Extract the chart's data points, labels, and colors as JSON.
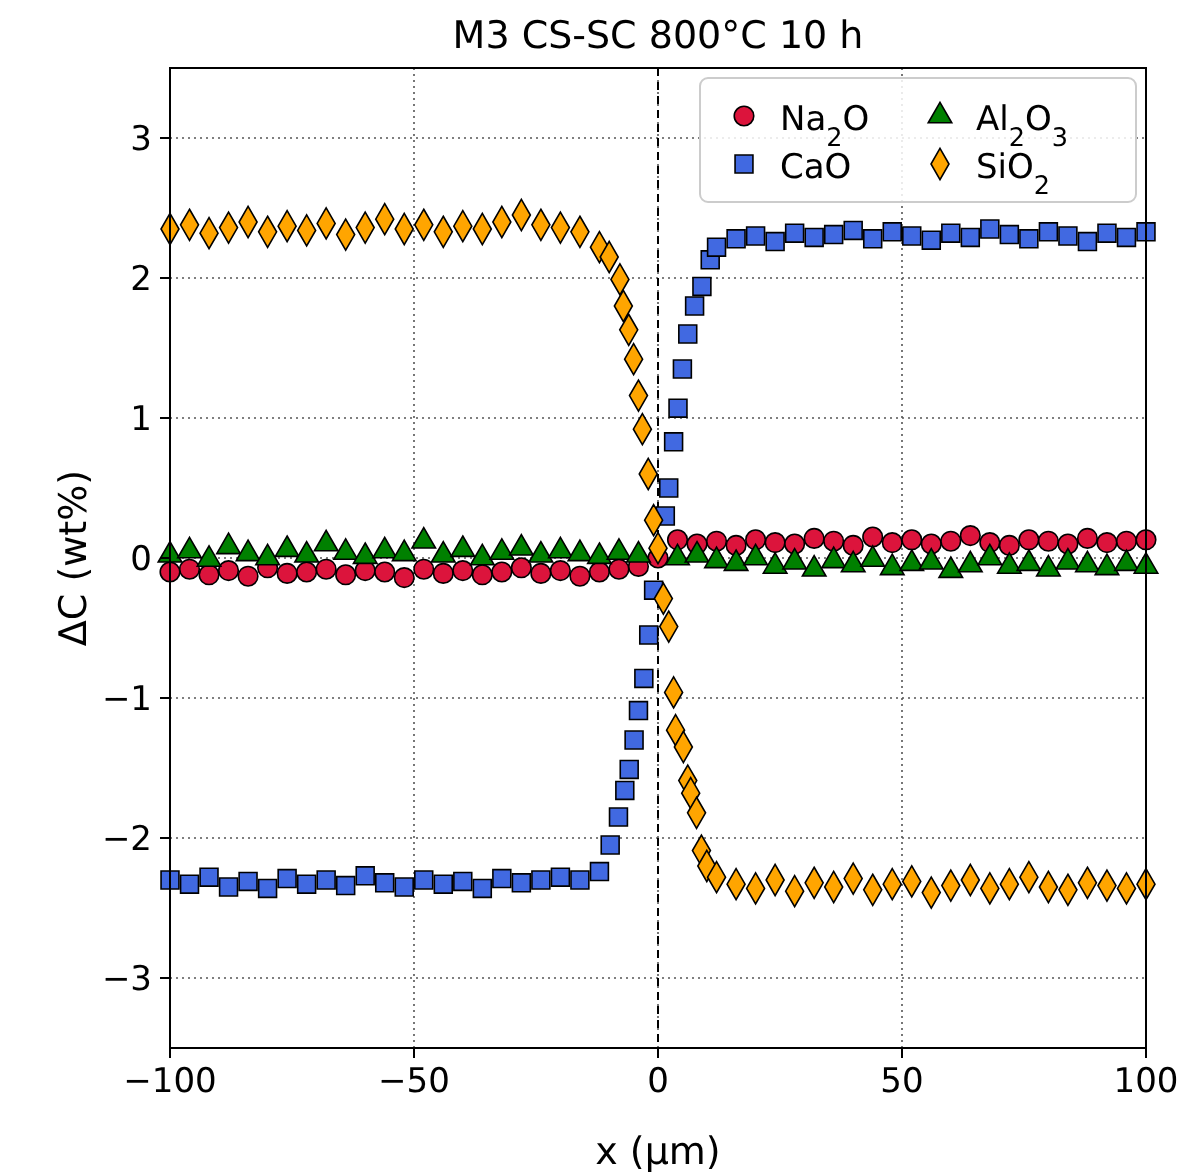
{
  "chart_data": {
    "type": "scatter",
    "title": "M3 CS-SC 800°C 10 h",
    "xlabel": "x (μm)",
    "ylabel": "ΔC (wt%)",
    "xlim": [
      -100,
      100
    ],
    "xticks": [
      {
        "value": -100,
        "label": "−100"
      },
      {
        "value": -50,
        "label": "−50"
      },
      0,
      50,
      100
    ],
    "ylim": [
      -3.5,
      3.5
    ],
    "yticks": [
      {
        "value": -3,
        "label": "−3"
      },
      {
        "value": -2,
        "label": "−2"
      },
      {
        "value": -1,
        "label": "−1"
      },
      0,
      1,
      2,
      3
    ],
    "grid": true,
    "legend": "top right",
    "ref_lines": [
      {
        "axis": "x",
        "value": 0,
        "color": "#000000",
        "line_style": "dashed"
      }
    ],
    "series": [
      {
        "name": "Na$_{2}$O",
        "color": "#dc143c",
        "marker": "circle",
        "x": [
          -100,
          -96,
          -92,
          -88,
          -84,
          -80,
          -76,
          -72,
          -68,
          -64,
          -60,
          -56,
          -52,
          -48,
          -44,
          -40,
          -36,
          -32,
          -28,
          -24,
          -20,
          -16,
          -12,
          -8,
          -4,
          0,
          4,
          8,
          12,
          16,
          20,
          24,
          28,
          32,
          36,
          40,
          44,
          48,
          52,
          56,
          60,
          64,
          68,
          72,
          76,
          80,
          84,
          88,
          92,
          96,
          100
        ],
        "values": [
          -0.1,
          -0.08,
          -0.12,
          -0.09,
          -0.13,
          -0.07,
          -0.11,
          -0.1,
          -0.08,
          -0.12,
          -0.09,
          -0.1,
          -0.14,
          -0.08,
          -0.11,
          -0.09,
          -0.12,
          -0.1,
          -0.07,
          -0.11,
          -0.09,
          -0.13,
          -0.1,
          -0.08,
          -0.06,
          0.0,
          0.13,
          0.1,
          0.12,
          0.09,
          0.13,
          0.11,
          0.1,
          0.14,
          0.12,
          0.09,
          0.15,
          0.11,
          0.13,
          0.1,
          0.12,
          0.16,
          0.11,
          0.09,
          0.13,
          0.12,
          0.1,
          0.14,
          0.11,
          0.12,
          0.13
        ]
      },
      {
        "name": "CaO",
        "color": "#4169e1",
        "marker": "square",
        "x": [
          -100,
          -96,
          -92,
          -88,
          -84,
          -80,
          -76,
          -72,
          -68,
          -64,
          -60,
          -56,
          -52,
          -48,
          -44,
          -40,
          -36,
          -32,
          -28,
          -24,
          -20,
          -16,
          -12,
          -9.8,
          -8.1,
          -6.8,
          -5.9,
          -4.9,
          -4.0,
          -2.9,
          -1.9,
          -0.9,
          1.5,
          2.2,
          3.2,
          4.1,
          5.0,
          6.1,
          7.5,
          9.0,
          10.7,
          12,
          16,
          20,
          24,
          28,
          32,
          36,
          40,
          44,
          48,
          52,
          56,
          60,
          64,
          68,
          72,
          76,
          80,
          84,
          88,
          92,
          96,
          100
        ],
        "values": [
          -2.3,
          -2.33,
          -2.28,
          -2.35,
          -2.31,
          -2.36,
          -2.29,
          -2.33,
          -2.3,
          -2.34,
          -2.27,
          -2.32,
          -2.35,
          -2.3,
          -2.33,
          -2.31,
          -2.36,
          -2.29,
          -2.32,
          -2.3,
          -2.28,
          -2.3,
          -2.24,
          -2.05,
          -1.85,
          -1.66,
          -1.51,
          -1.3,
          -1.09,
          -0.86,
          -0.55,
          -0.23,
          0.3,
          0.5,
          0.83,
          1.07,
          1.35,
          1.6,
          1.8,
          1.94,
          2.13,
          2.22,
          2.28,
          2.3,
          2.26,
          2.32,
          2.29,
          2.31,
          2.34,
          2.28,
          2.33,
          2.3,
          2.27,
          2.32,
          2.29,
          2.35,
          2.31,
          2.28,
          2.33,
          2.3,
          2.26,
          2.32,
          2.29,
          2.33
        ]
      },
      {
        "name": "Al$_{2}$O$_{3}$",
        "color": "#008000",
        "marker": "triangle",
        "x": [
          -100,
          -96,
          -92,
          -88,
          -84,
          -80,
          -76,
          -72,
          -68,
          -64,
          -60,
          -56,
          -52,
          -48,
          -44,
          -40,
          -36,
          -32,
          -28,
          -24,
          -20,
          -16,
          -12,
          -8,
          -4,
          4,
          8,
          12,
          16,
          20,
          24,
          28,
          32,
          36,
          40,
          44,
          48,
          52,
          56,
          60,
          64,
          68,
          72,
          76,
          80,
          84,
          88,
          92,
          96,
          100
        ],
        "values": [
          0.02,
          0.05,
          -0.01,
          0.08,
          0.03,
          0.0,
          0.06,
          0.02,
          0.1,
          0.04,
          0.01,
          0.05,
          0.03,
          0.12,
          0.02,
          0.06,
          0.0,
          0.04,
          0.07,
          0.02,
          0.05,
          0.03,
          0.01,
          0.04,
          0.02,
          0.0,
          0.02,
          -0.02,
          -0.04,
          0.0,
          -0.06,
          -0.03,
          -0.08,
          -0.02,
          -0.05,
          -0.01,
          -0.07,
          -0.04,
          -0.03,
          -0.09,
          -0.05,
          0.0,
          -0.06,
          -0.04,
          -0.08,
          -0.03,
          -0.05,
          -0.07,
          -0.04,
          -0.06
        ]
      },
      {
        "name": "SiO$_{2}$",
        "color": "#ffa500",
        "marker": "diamond",
        "x": [
          -100,
          -96,
          -92,
          -88,
          -84,
          -80,
          -76,
          -72,
          -68,
          -64,
          -60,
          -56,
          -52,
          -48,
          -44,
          -40,
          -36,
          -32,
          -28,
          -24,
          -20,
          -16,
          -12,
          -10,
          -7.8,
          -7.1,
          -6.0,
          -5.0,
          -4.0,
          -3.2,
          -2.0,
          -0.9,
          0,
          1.1,
          2.2,
          3.2,
          3.6,
          5.2,
          6.1,
          6.7,
          7.9,
          8.9,
          10,
          12,
          16,
          20,
          24,
          28,
          32,
          36,
          40,
          44,
          48,
          52,
          56,
          60,
          64,
          68,
          72,
          76,
          80,
          84,
          88,
          92,
          96,
          100
        ],
        "values": [
          2.35,
          2.38,
          2.32,
          2.36,
          2.4,
          2.33,
          2.37,
          2.34,
          2.39,
          2.31,
          2.36,
          2.42,
          2.35,
          2.38,
          2.33,
          2.37,
          2.35,
          2.4,
          2.45,
          2.38,
          2.36,
          2.33,
          2.22,
          2.15,
          1.99,
          1.8,
          1.63,
          1.42,
          1.16,
          0.92,
          0.6,
          0.27,
          0.07,
          -0.29,
          -0.49,
          -0.96,
          -1.23,
          -1.35,
          -1.59,
          -1.68,
          -1.82,
          -2.09,
          -2.2,
          -2.28,
          -2.33,
          -2.36,
          -2.3,
          -2.38,
          -2.32,
          -2.35,
          -2.29,
          -2.37,
          -2.33,
          -2.31,
          -2.39,
          -2.34,
          -2.3,
          -2.36,
          -2.33,
          -2.28,
          -2.35,
          -2.37,
          -2.32,
          -2.34,
          -2.36,
          -2.33
        ]
      }
    ]
  }
}
